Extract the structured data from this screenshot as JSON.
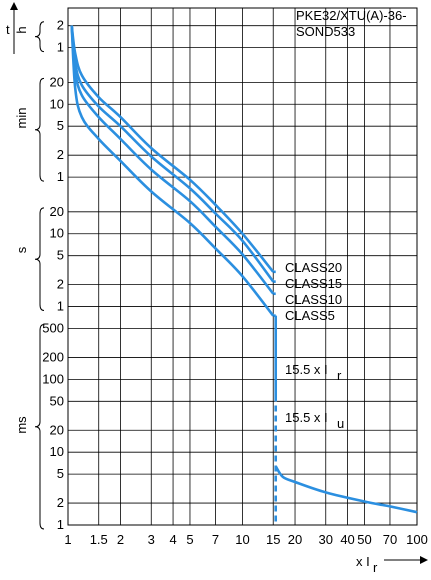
{
  "chart_data": {
    "type": "line",
    "title_lines": [
      "PKE32/XTU(A)-36-",
      "SOND533"
    ],
    "x_axis": {
      "scale": "log",
      "range": [
        1,
        100
      ],
      "tick_labels": [
        "1",
        "1.5",
        "2",
        "3",
        "4",
        "5",
        "7",
        "10",
        "15",
        "20",
        "30",
        "40",
        "50",
        "70",
        "100"
      ],
      "tick_values": [
        1,
        1.5,
        2,
        3,
        4,
        5,
        7,
        10,
        15,
        20,
        30,
        40,
        50,
        70,
        100
      ],
      "label_main": "x I",
      "label_sub": "r"
    },
    "y_axis": {
      "label": "t",
      "bands": [
        {
          "unit": "h",
          "ticks": [
            "2",
            "1"
          ]
        },
        {
          "unit": "min",
          "ticks": [
            "20",
            "10",
            "5",
            "2",
            "1"
          ]
        },
        {
          "unit": "s",
          "ticks": [
            "20",
            "10",
            "5",
            "2",
            "1"
          ]
        },
        {
          "unit": "ms",
          "ticks": [
            "500",
            "200",
            "100",
            "50",
            "20",
            "10",
            "5",
            "2",
            "1"
          ]
        }
      ]
    },
    "series": [
      {
        "name": "CLASS20",
        "x": [
          1.05,
          1.1,
          1.2,
          1.5,
          2,
          3,
          5,
          7,
          10,
          15
        ],
        "y_seconds": [
          7200,
          3000,
          1500,
          750,
          400,
          150,
          55,
          25,
          10,
          3
        ]
      },
      {
        "name": "CLASS15",
        "x": [
          1.05,
          1.1,
          1.2,
          1.5,
          2,
          3,
          5,
          7,
          10,
          15
        ],
        "y_seconds": [
          7200,
          2200,
          1100,
          560,
          300,
          115,
          42,
          19,
          8,
          2.2
        ]
      },
      {
        "name": "CLASS10",
        "x": [
          1.05,
          1.1,
          1.2,
          1.5,
          2,
          3,
          5,
          7,
          10,
          15
        ],
        "y_seconds": [
          7200,
          1700,
          800,
          400,
          200,
          76,
          28,
          12.5,
          5.2,
          1.5
        ]
      },
      {
        "name": "CLASS5",
        "x": [
          1.05,
          1.1,
          1.2,
          1.5,
          2,
          3,
          5,
          7,
          10,
          15
        ],
        "y_seconds": [
          7200,
          1000,
          400,
          200,
          100,
          38,
          14,
          6.3,
          2.6,
          0.75
        ]
      }
    ],
    "instantaneous": [
      {
        "name_main": "15.5 x I",
        "name_sub": "r",
        "x": 15.5,
        "y_top_seconds": 0.75,
        "y_bottom_seconds": 0.06,
        "style": "solid"
      },
      {
        "name_main": "15.5 x I",
        "name_sub": "u",
        "x": 15.5,
        "y_top_seconds": 0.06,
        "y_bottom_seconds": 0.001,
        "style": "dashed"
      }
    ],
    "tail_curve": {
      "x": [
        15.5,
        17,
        20,
        30,
        50,
        70,
        100
      ],
      "y_seconds": [
        0.0064,
        0.0046,
        0.0039,
        0.0028,
        0.0021,
        0.0018,
        0.0015
      ]
    },
    "grid": true,
    "line_color": "#2b8fe0"
  }
}
